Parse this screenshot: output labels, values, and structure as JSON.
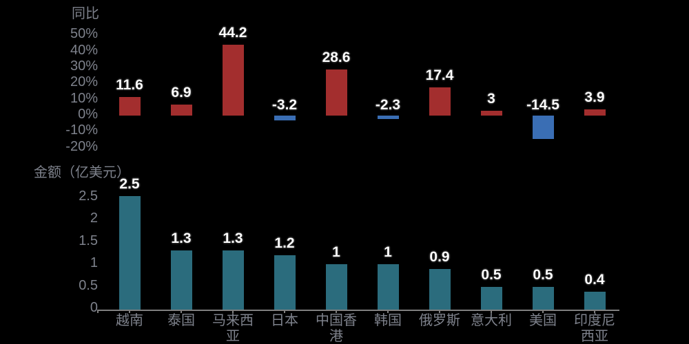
{
  "background_color": "#000000",
  "colors": {
    "text_gray": "#7E828C",
    "axis_line": "#808080",
    "value_label_text": "#FFFFFF",
    "value_label_outline": "#1C1C1C",
    "yoy_positive": "#A32E2E",
    "yoy_negative": "#3A6EB4",
    "amount_bar": "#2B6C7D"
  },
  "chart_data": [
    {
      "type": "bar",
      "title": "同比",
      "ylabel": "同比",
      "unit": "%",
      "categories": [
        "越南",
        "泰国",
        "马来西亚",
        "日本",
        "中国香港",
        "韩国",
        "俄罗斯",
        "意大利",
        "美国",
        "印度尼西亚"
      ],
      "values": [
        11.6,
        6.9,
        44.2,
        -3.2,
        28.6,
        -2.3,
        17.4,
        3,
        -14.5,
        3.9
      ],
      "labels": [
        "11.6",
        "6.9",
        "44.2",
        "-3.2",
        "28.6",
        "-2.3",
        "17.4",
        "3",
        "-14.5",
        "3.9"
      ],
      "yticks": [
        "50%",
        "40%",
        "30%",
        "20%",
        "10%",
        "0%",
        "-10%",
        "-20%"
      ],
      "ylim": [
        -20,
        50
      ],
      "grid": false,
      "legend": "none",
      "x_axis_labels_shown": false,
      "positive_color": "#A32E2E",
      "negative_color": "#3A6EB4"
    },
    {
      "type": "bar",
      "title": "金额（亿美元）",
      "ylabel": "金额（亿美元）",
      "categories": [
        "越南",
        "泰国",
        "马来西亚",
        "日本",
        "中国香港",
        "韩国",
        "俄罗斯",
        "意大利",
        "美国",
        "印度尼西亚"
      ],
      "category_lines": [
        [
          "越南"
        ],
        [
          "泰国"
        ],
        [
          "马来西",
          "亚"
        ],
        [
          "日本"
        ],
        [
          "中国香",
          "港"
        ],
        [
          "韩国"
        ],
        [
          "俄罗斯"
        ],
        [
          "意大利"
        ],
        [
          "美国"
        ],
        [
          "印度尼",
          "西亚"
        ]
      ],
      "values": [
        2.5,
        1.3,
        1.3,
        1.2,
        1,
        1,
        0.9,
        0.5,
        0.5,
        0.4
      ],
      "labels": [
        "2.5",
        "1.3",
        "1.3",
        "1.2",
        "1",
        "1",
        "0.9",
        "0.5",
        "0.5",
        "0.4"
      ],
      "yticks": [
        "2.5",
        "2",
        "1.5",
        "1",
        "0.5",
        "0"
      ],
      "ylim": [
        0,
        2.5
      ],
      "grid": false,
      "legend": "none",
      "x_axis_labels_shown": true,
      "bar_color": "#2B6C7D"
    }
  ]
}
